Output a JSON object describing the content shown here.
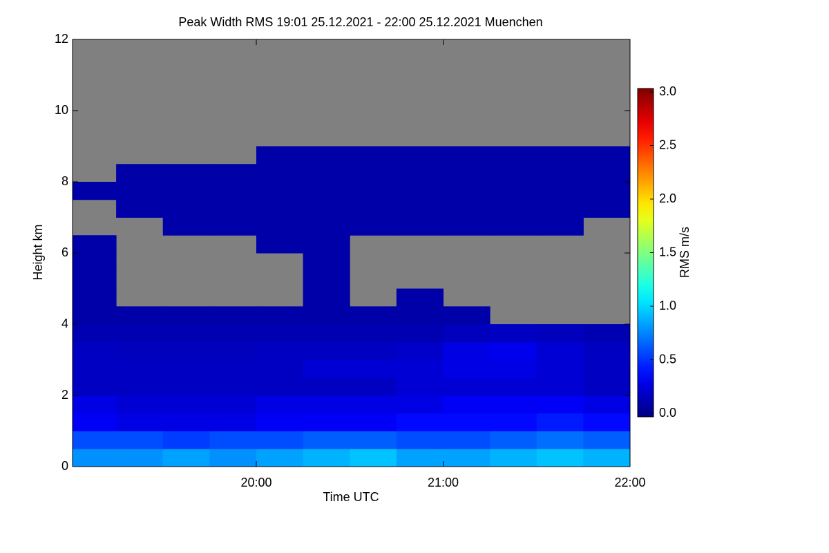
{
  "chart_data": {
    "type": "heatmap",
    "title": "Peak Width RMS   19:01 25.12.2021 - 22:00 25.12.2021 Muenchen",
    "x_label": "Time UTC",
    "y_label": "Height km",
    "colorbar_label": "RMS m/s",
    "xlim": [
      19.0167,
      22.0
    ],
    "ylim": [
      0,
      12
    ],
    "xticks": [
      {
        "value": 20,
        "label": "20:00"
      },
      {
        "value": 21,
        "label": "21:00"
      },
      {
        "value": 22,
        "label": "22:00"
      }
    ],
    "yticks": [
      0,
      2,
      4,
      6,
      8,
      10,
      12
    ],
    "clim": [
      0,
      3
    ],
    "cticks": [
      {
        "value": 0,
        "label": "0.0"
      },
      {
        "value": 0.5,
        "label": "0.5"
      },
      {
        "value": 1,
        "label": "1.0"
      },
      {
        "value": 1.5,
        "label": "1.5"
      },
      {
        "value": 2,
        "label": "2.0"
      },
      {
        "value": 2.5,
        "label": "2.5"
      },
      {
        "value": 3,
        "label": "3.0"
      }
    ],
    "colormap": "jet",
    "missing_color": "#808080",
    "x": [
      19.125,
      19.375,
      19.625,
      19.875,
      20.125,
      20.375,
      20.625,
      20.875,
      21.125,
      21.375,
      21.625,
      21.875
    ],
    "y": [
      0.25,
      0.75,
      1.25,
      1.75,
      2.25,
      2.75,
      3.25,
      3.75,
      4.25,
      4.75,
      5.25,
      5.75,
      6.25,
      6.75,
      7.25,
      7.75,
      8.25,
      8.75,
      9.25,
      9.75,
      10.25,
      10.75,
      11.25,
      11.75
    ],
    "z": [
      [
        0.8,
        0.8,
        0.85,
        0.8,
        0.85,
        0.9,
        0.95,
        0.85,
        0.85,
        0.9,
        0.95,
        0.9
      ],
      [
        0.6,
        0.6,
        0.55,
        0.6,
        0.6,
        0.65,
        0.65,
        0.6,
        0.6,
        0.65,
        0.7,
        0.65
      ],
      [
        0.35,
        0.3,
        0.3,
        0.3,
        0.35,
        0.35,
        0.35,
        0.4,
        0.4,
        0.4,
        0.45,
        0.4
      ],
      [
        0.3,
        0.25,
        0.25,
        0.25,
        0.3,
        0.3,
        0.3,
        0.3,
        0.35,
        0.35,
        0.35,
        0.3
      ],
      [
        0.2,
        0.2,
        0.2,
        0.2,
        0.2,
        0.2,
        0.2,
        0.25,
        0.25,
        0.25,
        0.25,
        0.2
      ],
      [
        0.2,
        0.2,
        0.2,
        0.2,
        0.2,
        0.25,
        0.25,
        0.25,
        0.3,
        0.3,
        0.25,
        0.2
      ],
      [
        0.2,
        0.18,
        0.18,
        0.18,
        0.2,
        0.2,
        0.2,
        0.22,
        0.3,
        0.32,
        0.25,
        0.2
      ],
      [
        0.15,
        0.15,
        0.15,
        0.15,
        0.15,
        0.15,
        0.15,
        0.15,
        0.18,
        0.2,
        0.18,
        0.15
      ],
      [
        0.12,
        0.12,
        0.12,
        0.12,
        0.12,
        0.12,
        0.12,
        0.12,
        0.12,
        null,
        null,
        null
      ],
      [
        0.12,
        null,
        null,
        null,
        null,
        0.12,
        null,
        0.12,
        null,
        null,
        null,
        null
      ],
      [
        0.12,
        null,
        null,
        null,
        null,
        0.12,
        null,
        null,
        null,
        null,
        null,
        null
      ],
      [
        0.12,
        null,
        null,
        null,
        null,
        0.12,
        null,
        null,
        null,
        null,
        null,
        null
      ],
      [
        0.12,
        null,
        null,
        null,
        0.12,
        0.12,
        null,
        null,
        null,
        null,
        null,
        null
      ],
      [
        null,
        null,
        0.12,
        0.12,
        0.12,
        0.12,
        0.12,
        0.12,
        0.12,
        0.12,
        0.12,
        null
      ],
      [
        null,
        0.12,
        0.12,
        0.12,
        0.12,
        0.12,
        0.12,
        0.12,
        0.12,
        0.12,
        0.12,
        0.12
      ],
      [
        0.12,
        0.12,
        0.12,
        0.12,
        0.12,
        0.12,
        0.12,
        0.12,
        0.12,
        0.12,
        0.12,
        0.12
      ],
      [
        null,
        0.12,
        0.12,
        0.12,
        0.12,
        0.12,
        0.12,
        0.12,
        0.12,
        0.12,
        0.12,
        0.12
      ],
      [
        null,
        null,
        null,
        null,
        0.12,
        0.12,
        0.12,
        0.12,
        0.12,
        0.12,
        0.12,
        0.12
      ],
      [
        null,
        null,
        null,
        null,
        null,
        null,
        null,
        null,
        null,
        null,
        null,
        null
      ],
      [
        null,
        null,
        null,
        null,
        null,
        null,
        null,
        null,
        null,
        null,
        null,
        null
      ],
      [
        null,
        null,
        null,
        null,
        null,
        null,
        null,
        null,
        null,
        null,
        null,
        null
      ],
      [
        null,
        null,
        null,
        null,
        null,
        null,
        null,
        null,
        null,
        null,
        null,
        null
      ],
      [
        null,
        null,
        null,
        null,
        null,
        null,
        null,
        null,
        null,
        null,
        null,
        null
      ],
      [
        null,
        null,
        null,
        null,
        null,
        null,
        null,
        null,
        null,
        null,
        null,
        null
      ]
    ]
  }
}
